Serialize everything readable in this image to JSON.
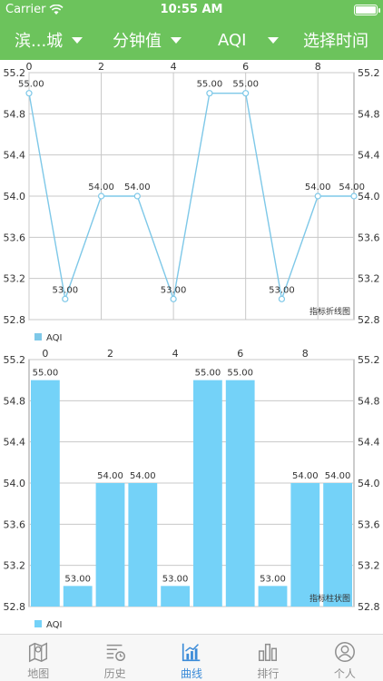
{
  "status": {
    "carrier": "Carrier",
    "time": "10:55 AM"
  },
  "filters": {
    "city": "滨...城",
    "interval": "分钟值",
    "metric": "AQI",
    "time_select": "选择时间"
  },
  "colors": {
    "header_bg": "#6cc35c",
    "series_line": "#7ec8e8",
    "series_bar": "#74d2f8",
    "tab_active": "#3b8bd8",
    "tab_inactive": "#8e8e8e"
  },
  "chart_data": [
    {
      "type": "line",
      "description": "指标折线图",
      "x": [
        0,
        1,
        2,
        3,
        4,
        5,
        6,
        7,
        8,
        9
      ],
      "x_ticks": [
        "0",
        "2",
        "4",
        "6",
        "8"
      ],
      "series": [
        {
          "name": "AQI",
          "values": [
            55.0,
            53.0,
            54.0,
            54.0,
            53.0,
            55.0,
            55.0,
            53.0,
            54.0,
            54.0
          ]
        }
      ],
      "value_labels": [
        "55.00",
        "53.00",
        "54.00",
        "54.00",
        "53.00",
        "55.00",
        "55.00",
        "53.00",
        "54.00",
        "54.00"
      ],
      "ylim": [
        52.8,
        55.2
      ],
      "y_ticks": [
        "55.2",
        "54.8",
        "54.4",
        "54.0",
        "53.6",
        "53.2",
        "52.8"
      ],
      "legend": "bottom-left",
      "grid": true
    },
    {
      "type": "bar",
      "description": "指标柱状图",
      "x": [
        0,
        1,
        2,
        3,
        4,
        5,
        6,
        7,
        8,
        9
      ],
      "x_ticks": [
        "0",
        "2",
        "4",
        "6",
        "8"
      ],
      "series": [
        {
          "name": "AQI",
          "values": [
            55.0,
            53.0,
            54.0,
            54.0,
            53.0,
            55.0,
            55.0,
            53.0,
            54.0,
            54.0
          ]
        }
      ],
      "value_labels": [
        "55.00",
        "53.00",
        "54.00",
        "54.00",
        "53.00",
        "55.00",
        "55.00",
        "53.00",
        "54.00",
        "54.00"
      ],
      "ylim": [
        52.8,
        55.2
      ],
      "y_ticks": [
        "55.2",
        "54.8",
        "54.4",
        "54.0",
        "53.6",
        "53.2",
        "52.8"
      ],
      "legend": "bottom-left",
      "grid": true
    }
  ],
  "tabs": [
    {
      "label": "地图",
      "icon": "map-icon",
      "active": false
    },
    {
      "label": "历史",
      "icon": "history-icon",
      "active": false
    },
    {
      "label": "曲线",
      "icon": "curve-chart-icon",
      "active": true
    },
    {
      "label": "排行",
      "icon": "ranking-icon",
      "active": false
    },
    {
      "label": "个人",
      "icon": "person-icon",
      "active": false
    }
  ]
}
